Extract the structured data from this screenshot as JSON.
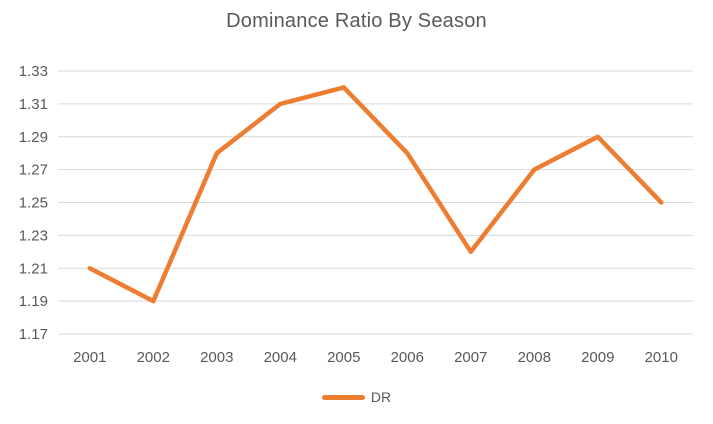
{
  "chart_data": {
    "type": "line",
    "title": "Dominance Ratio By Season",
    "categories": [
      "2001",
      "2002",
      "2003",
      "2004",
      "2005",
      "2006",
      "2007",
      "2008",
      "2009",
      "2010"
    ],
    "series": [
      {
        "name": "DR",
        "values": [
          1.21,
          1.19,
          1.28,
          1.31,
          1.32,
          1.28,
          1.22,
          1.27,
          1.29,
          1.25
        ],
        "color": "#ED7D31"
      }
    ],
    "xlabel": "",
    "ylabel": "",
    "ylim": [
      1.17,
      1.33
    ],
    "ytick_step": 0.02,
    "ytick_labels": [
      "1.17",
      "1.19",
      "1.21",
      "1.23",
      "1.25",
      "1.27",
      "1.29",
      "1.31",
      "1.33"
    ],
    "grid": true,
    "legend_position": "bottom"
  },
  "colors": {
    "series_orange": "#ED7D31",
    "gridline": "#D9D9D9",
    "text": "#595959",
    "background": "#FFFFFF"
  }
}
